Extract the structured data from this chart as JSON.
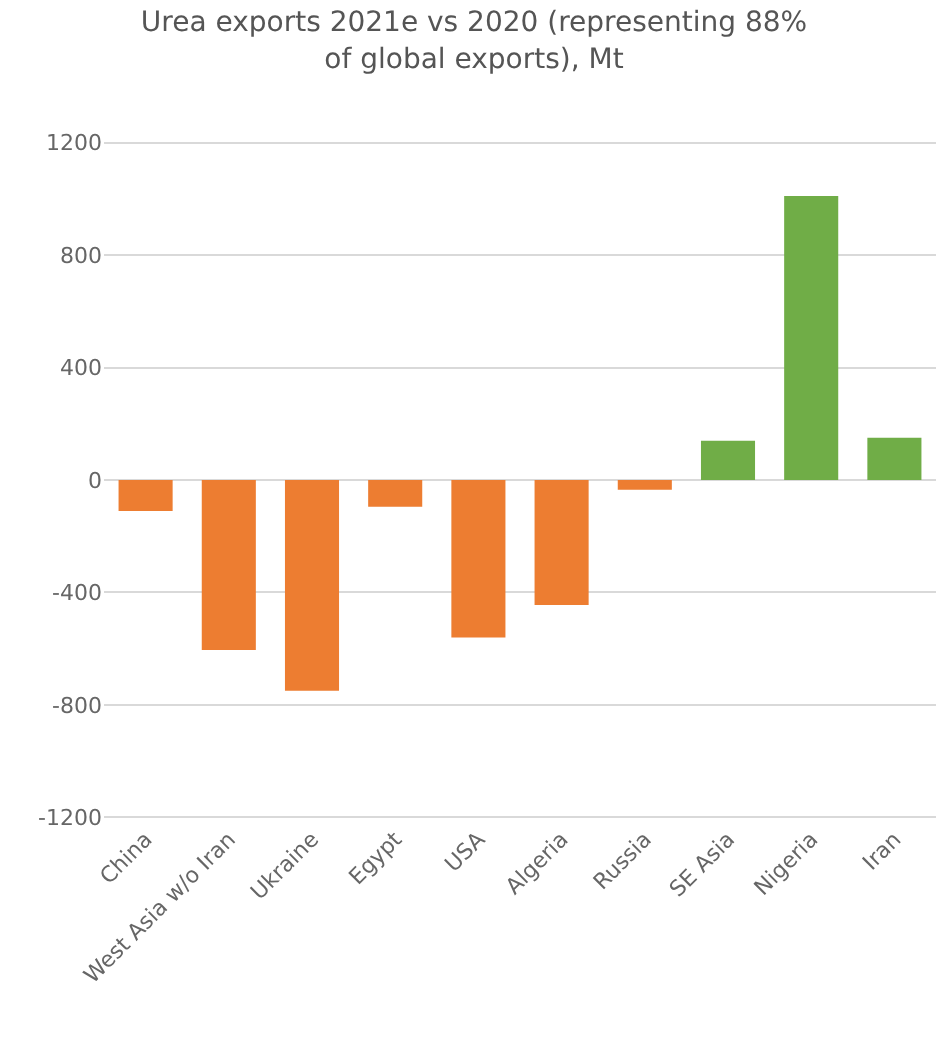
{
  "chart_data": {
    "type": "bar",
    "title": "Urea exports 2021e vs 2020 (representing 88% of global exports), Mt",
    "categories": [
      "China",
      "West Asia w/o Iran",
      "Ukraine",
      "Egypt",
      "USA",
      "Algeria",
      "Russia",
      "SE Asia",
      "Nigeria",
      "Iran"
    ],
    "values": [
      -110,
      -605,
      -750,
      -95,
      -560,
      -445,
      -35,
      140,
      1010,
      150
    ],
    "colors": [
      "#ed7d31",
      "#ed7d31",
      "#ed7d31",
      "#ed7d31",
      "#ed7d31",
      "#ed7d31",
      "#ed7d31",
      "#70ad47",
      "#70ad47",
      "#70ad47"
    ],
    "ylim": [
      -1200,
      1200
    ],
    "yticks": [
      -1200,
      -800,
      -400,
      0,
      400,
      800,
      1200
    ],
    "grid": "y",
    "legend": false
  }
}
